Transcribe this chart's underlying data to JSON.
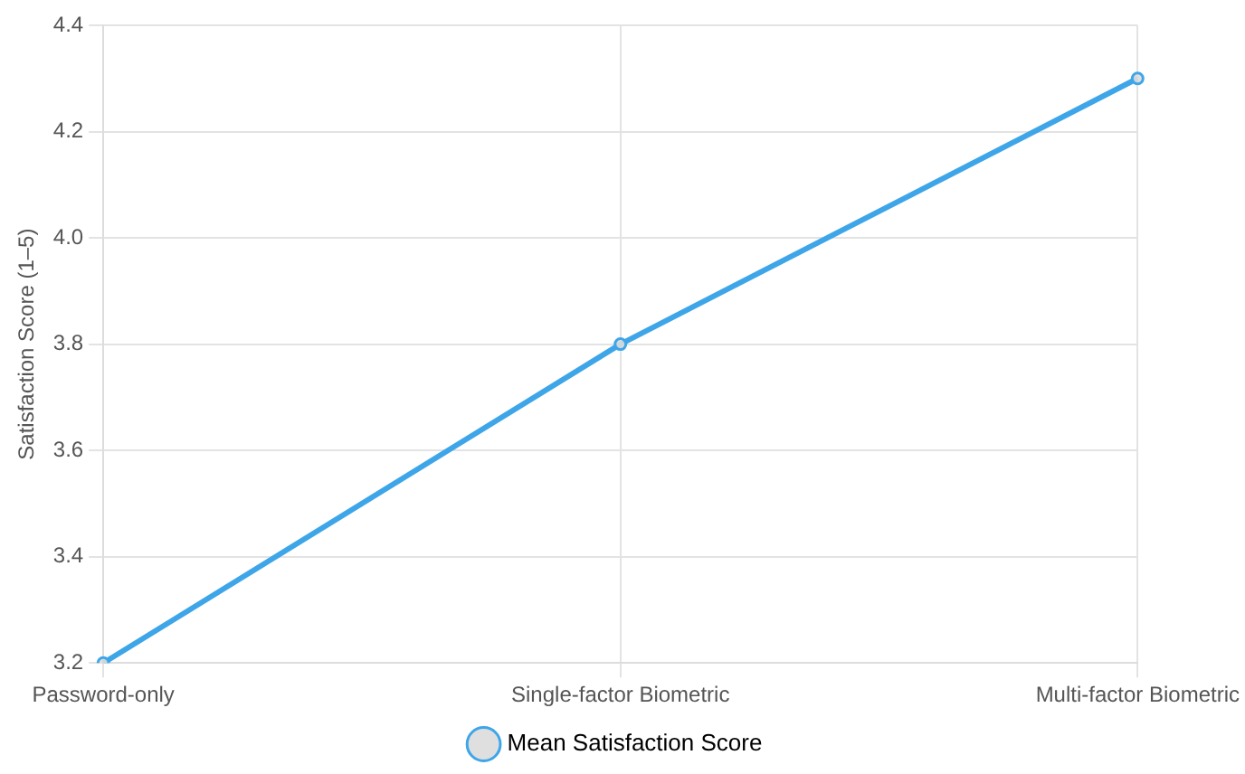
{
  "chart_data": {
    "type": "line",
    "ylabel": "Satisfaction Score (1–5)",
    "categories": [
      "Password-only",
      "Single-factor Biometric",
      "Multi-factor Biometric"
    ],
    "series": [
      {
        "name": "Mean Satisfaction Score",
        "color": "#3ea6e8",
        "values": [
          3.2,
          3.8,
          4.3
        ]
      }
    ],
    "ylim": [
      3.2,
      4.4
    ],
    "yticks": [
      3.2,
      3.4,
      3.6,
      3.8,
      {
        "value": 4,
        "label": "4.0"
      },
      4.2,
      4.4
    ],
    "grid": true,
    "legend": "bottom",
    "marker": "circle",
    "line_style": "solid"
  }
}
